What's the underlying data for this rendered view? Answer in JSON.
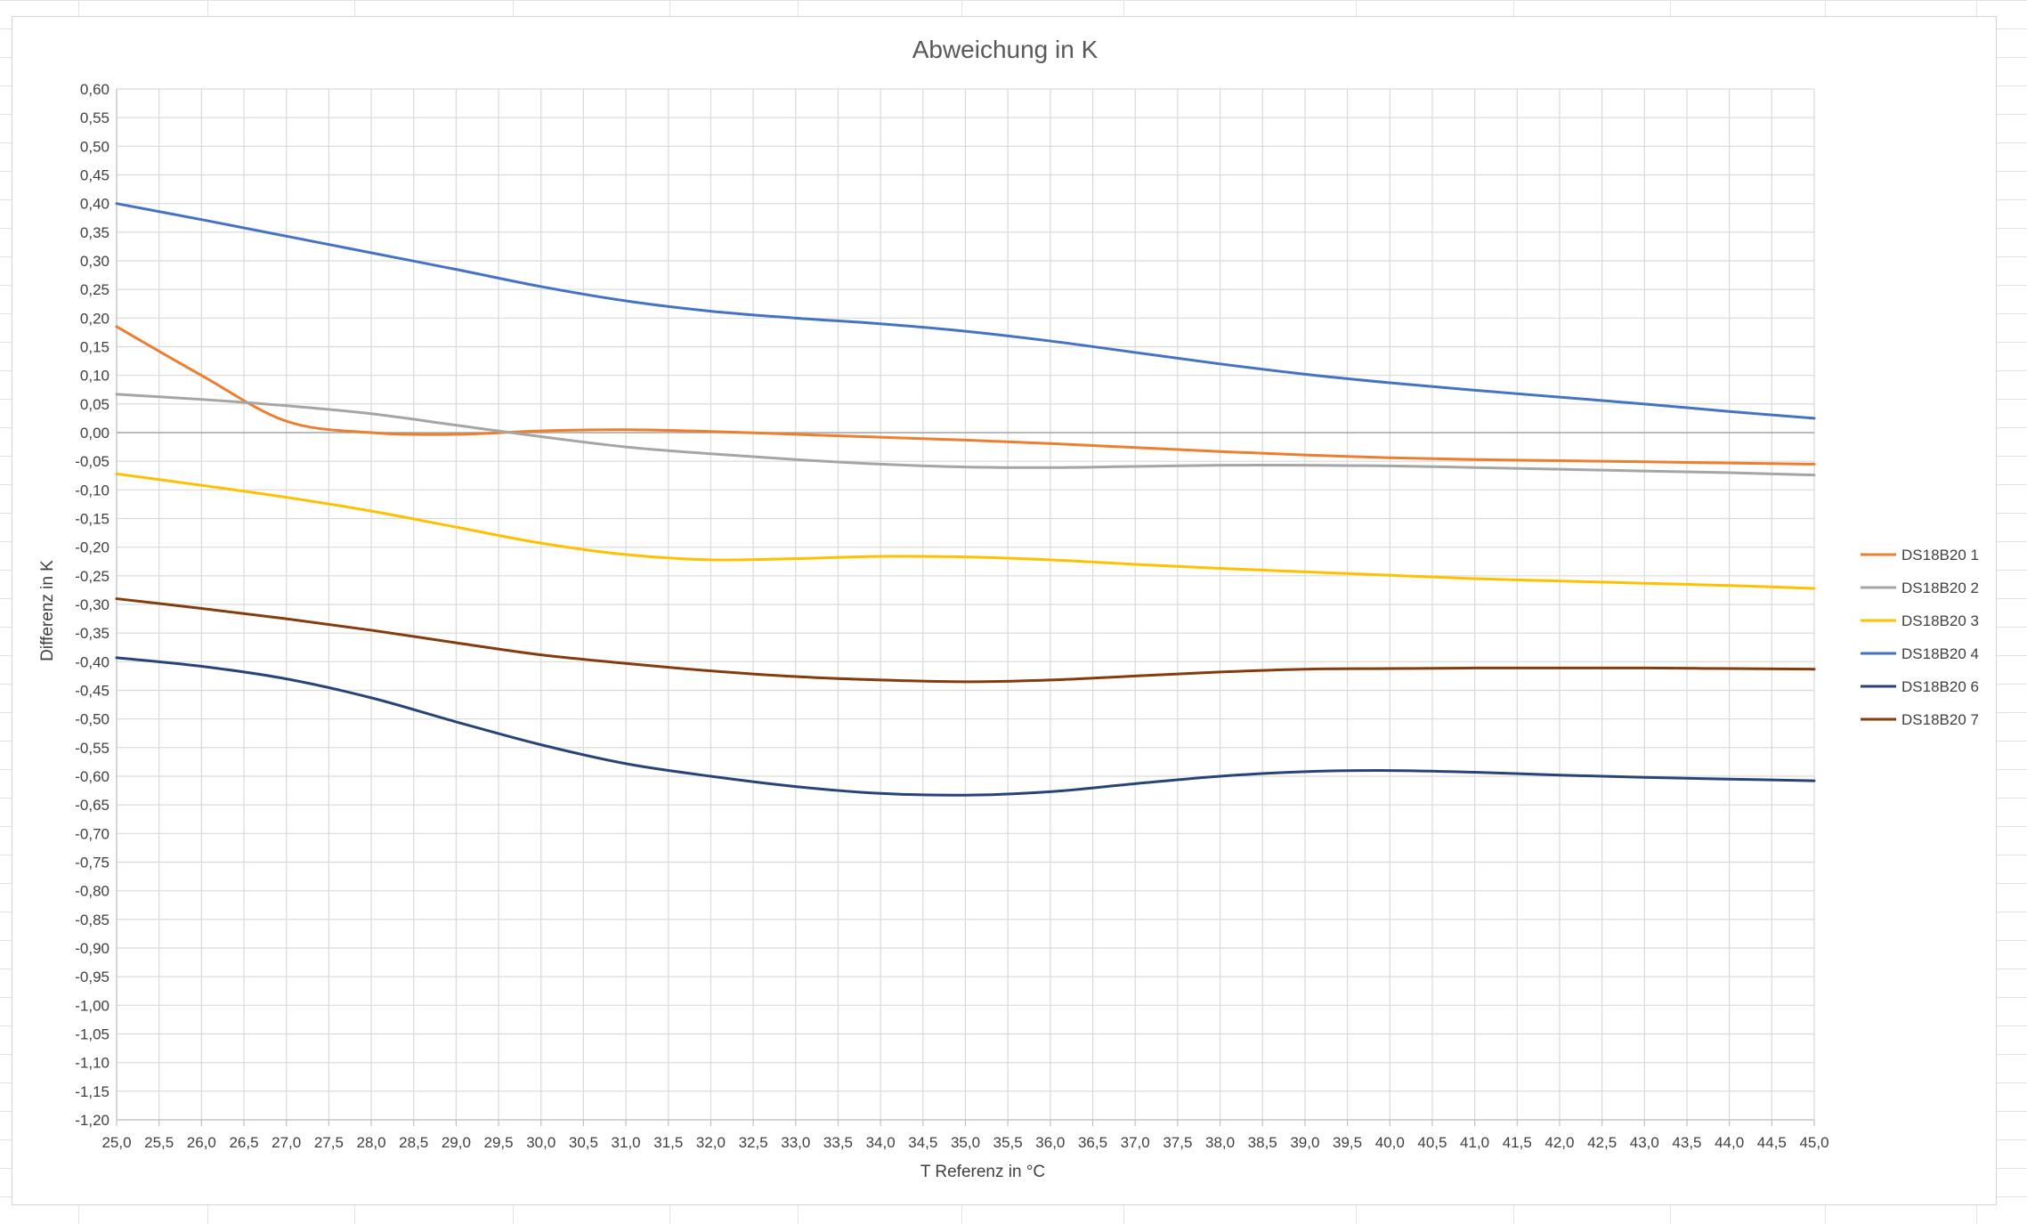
{
  "chart_data": {
    "type": "line",
    "title": "Abweichung in K",
    "xlabel": "T Referenz in °C",
    "ylabel": "Differenz in K",
    "xlim": [
      25.0,
      45.0
    ],
    "ylim": [
      -1.2,
      0.6
    ],
    "x_ticks": [
      "25,0",
      "25,5",
      "26,0",
      "26,5",
      "27,0",
      "27,5",
      "28,0",
      "28,5",
      "29,0",
      "29,5",
      "30,0",
      "30,5",
      "31,0",
      "31,5",
      "32,0",
      "32,5",
      "33,0",
      "33,5",
      "34,0",
      "34,5",
      "35,0",
      "35,5",
      "36,0",
      "36,5",
      "37,0",
      "37,5",
      "38,0",
      "38,5",
      "39,0",
      "39,5",
      "40,0",
      "40,5",
      "41,0",
      "41,5",
      "42,0",
      "42,5",
      "43,0",
      "43,5",
      "44,0",
      "44,5",
      "45,0"
    ],
    "y_ticks": [
      "0,60",
      "0,55",
      "0,50",
      "0,45",
      "0,40",
      "0,35",
      "0,30",
      "0,25",
      "0,20",
      "0,15",
      "0,10",
      "0,05",
      "0,00",
      "-0,05",
      "-0,10",
      "-0,15",
      "-0,20",
      "-0,25",
      "-0,30",
      "-0,35",
      "-0,40",
      "-0,45",
      "-0,50",
      "-0,55",
      "-0,60",
      "-0,65",
      "-0,70",
      "-0,75",
      "-0,80",
      "-0,85",
      "-0,90",
      "-0,95",
      "-1,00",
      "-1,05",
      "-1,10",
      "-1,15",
      "-1,20"
    ],
    "grid": true,
    "legend_position": "right",
    "x": [
      25.0,
      26.0,
      27.0,
      28.0,
      29.0,
      30.0,
      31.0,
      32.0,
      33.0,
      34.0,
      35.0,
      36.0,
      37.0,
      38.0,
      39.0,
      40.0,
      41.0,
      42.0,
      43.0,
      44.0,
      45.0
    ],
    "series": [
      {
        "name": "DS18B20 1",
        "color": "#ED7D31",
        "values": [
          0.185,
          0.1,
          0.02,
          0.0,
          -0.003,
          0.003,
          0.005,
          0.002,
          -0.003,
          -0.008,
          -0.013,
          -0.019,
          -0.026,
          -0.033,
          -0.039,
          -0.044,
          -0.047,
          -0.049,
          -0.051,
          -0.053,
          -0.055
        ]
      },
      {
        "name": "DS18B20 2",
        "color": "#A5A5A5",
        "values": [
          0.067,
          0.058,
          0.047,
          0.033,
          0.013,
          -0.007,
          -0.025,
          -0.037,
          -0.047,
          -0.055,
          -0.06,
          -0.061,
          -0.059,
          -0.057,
          -0.057,
          -0.058,
          -0.061,
          -0.064,
          -0.067,
          -0.07,
          -0.074
        ]
      },
      {
        "name": "DS18B20 3",
        "color": "#FFC000",
        "values": [
          -0.072,
          -0.092,
          -0.113,
          -0.137,
          -0.165,
          -0.193,
          -0.213,
          -0.222,
          -0.22,
          -0.216,
          -0.217,
          -0.222,
          -0.23,
          -0.237,
          -0.243,
          -0.249,
          -0.255,
          -0.259,
          -0.263,
          -0.267,
          -0.272
        ]
      },
      {
        "name": "DS18B20 4",
        "color": "#4472C4",
        "values": [
          0.4,
          0.372,
          0.343,
          0.314,
          0.285,
          0.255,
          0.23,
          0.212,
          0.2,
          0.19,
          0.177,
          0.16,
          0.14,
          0.12,
          0.102,
          0.087,
          0.074,
          0.062,
          0.05,
          0.037,
          0.025
        ]
      },
      {
        "name": "DS18B20 6",
        "color": "#264478",
        "values": [
          -0.393,
          -0.408,
          -0.43,
          -0.463,
          -0.505,
          -0.545,
          -0.578,
          -0.6,
          -0.618,
          -0.63,
          -0.633,
          -0.627,
          -0.613,
          -0.6,
          -0.592,
          -0.59,
          -0.593,
          -0.598,
          -0.602,
          -0.605,
          -0.608
        ]
      },
      {
        "name": "DS18B20 7",
        "color": "#843C0C",
        "values": [
          -0.29,
          -0.307,
          -0.325,
          -0.345,
          -0.367,
          -0.388,
          -0.403,
          -0.416,
          -0.426,
          -0.432,
          -0.435,
          -0.432,
          -0.425,
          -0.418,
          -0.413,
          -0.412,
          -0.411,
          -0.411,
          -0.411,
          -0.412,
          -0.413
        ]
      }
    ]
  }
}
